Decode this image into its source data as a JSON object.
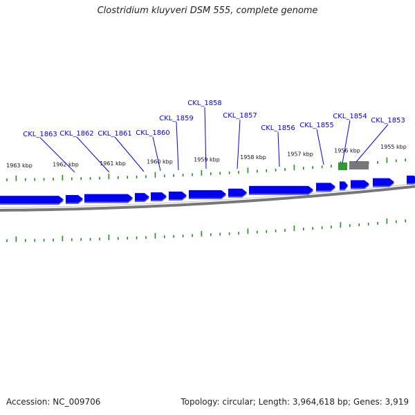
{
  "title": "Clostridium kluyveri DSM 555, complete genome",
  "footer": {
    "accession": "Accession: NC_009706",
    "summary": "Topology: circular; Length: 3,964,618 bp; Genes: 3,919"
  },
  "kbp_labels": [
    "1963 kbp",
    "1962 kbp",
    "1961 kbp",
    "1960 kbp",
    "1959 kbp",
    "1958 kbp",
    "1957 kbp",
    "1956 kbp",
    "1955 kbp"
  ],
  "gene_labels": [
    "CKL_1863",
    "CKL_1862",
    "CKL_1861",
    "CKL_1860",
    "CKL_1859",
    "CKL_1858",
    "CKL_1857",
    "CKL_1856",
    "CKL_1855",
    "CKL_1854",
    "CKL_1853"
  ],
  "colors": {
    "gene": "#0000ee",
    "gene_shadow": "#5555ff",
    "rna_gene": "#339933",
    "other_feature": "#777777",
    "tick": "#228B22",
    "backbone": "#777777",
    "label_line": "#0000ff"
  }
}
